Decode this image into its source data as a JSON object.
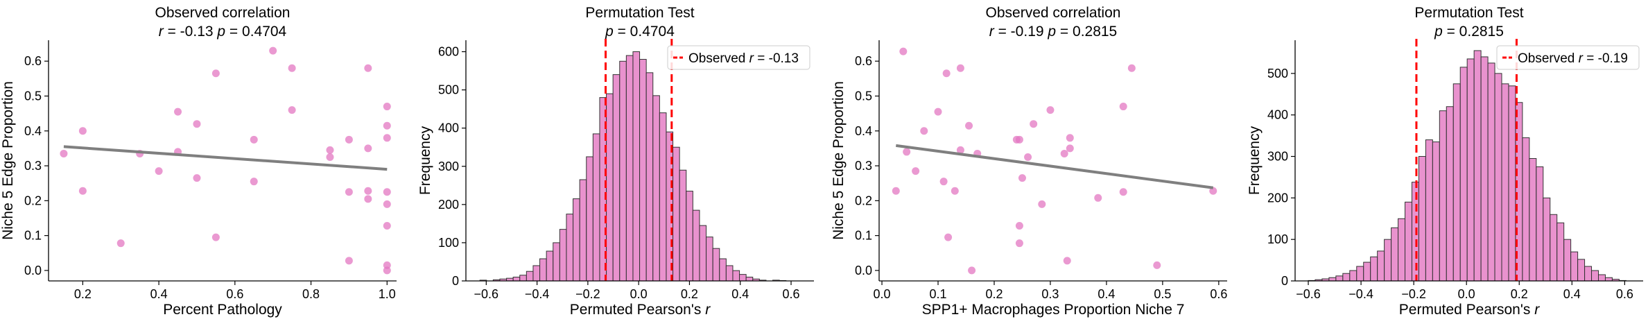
{
  "chart_data": [
    {
      "type": "scatter",
      "title": [
        "Observed correlation",
        "r = -0.13  p = 0.4704"
      ],
      "xlabel": "Percent Pathology",
      "ylabel": "Niche 5 Edge Proportion",
      "xlim": [
        0.11,
        1.025
      ],
      "ylim": [
        -0.03,
        0.66
      ],
      "xticks": [
        0.2,
        0.4,
        0.6,
        0.8,
        1.0
      ],
      "xtick_labels": [
        "0.2",
        "0.4",
        "0.6",
        "0.8",
        "1.0"
      ],
      "yticks": [
        0.0,
        0.1,
        0.2,
        0.3,
        0.4,
        0.5,
        0.6
      ],
      "ytick_labels": [
        "0.0",
        "0.1",
        "0.2",
        "0.3",
        "0.4",
        "0.5",
        "0.6"
      ],
      "point_color": "#e377c2",
      "line_color": "#7f7f7f",
      "fit_line": {
        "x": [
          0.15,
          1.0
        ],
        "y": [
          0.355,
          0.29
        ]
      },
      "points": [
        [
          0.15,
          0.335
        ],
        [
          0.2,
          0.4
        ],
        [
          0.2,
          0.228
        ],
        [
          0.3,
          0.078
        ],
        [
          0.35,
          0.335
        ],
        [
          0.4,
          0.285
        ],
        [
          0.45,
          0.455
        ],
        [
          0.45,
          0.34
        ],
        [
          0.5,
          0.42
        ],
        [
          0.5,
          0.265
        ],
        [
          0.55,
          0.565
        ],
        [
          0.55,
          0.095
        ],
        [
          0.65,
          0.375
        ],
        [
          0.65,
          0.255
        ],
        [
          0.7,
          0.63
        ],
        [
          0.75,
          0.58
        ],
        [
          0.75,
          0.46
        ],
        [
          0.85,
          0.345
        ],
        [
          0.85,
          0.325
        ],
        [
          0.9,
          0.375
        ],
        [
          0.9,
          0.225
        ],
        [
          0.9,
          0.028
        ],
        [
          0.95,
          0.58
        ],
        [
          0.95,
          0.35
        ],
        [
          0.95,
          0.228
        ],
        [
          0.95,
          0.205
        ],
        [
          1.0,
          0.47
        ],
        [
          1.0,
          0.415
        ],
        [
          1.0,
          0.38
        ],
        [
          1.0,
          0.225
        ],
        [
          1.0,
          0.19
        ],
        [
          1.0,
          0.128
        ],
        [
          1.0,
          0.015
        ],
        [
          1.0,
          0.0
        ]
      ]
    },
    {
      "type": "histogram",
      "title": [
        "Permutation Test",
        "p = 0.4704"
      ],
      "xlabel": "Permuted Pearson's r",
      "ylabel": "Frequency",
      "xlim": [
        -0.68,
        0.69
      ],
      "ylim": [
        0,
        630
      ],
      "xticks": [
        -0.6,
        -0.4,
        -0.2,
        0.0,
        0.2,
        0.4,
        0.6
      ],
      "xtick_labels": [
        "−0.6",
        "−0.4",
        "−0.2",
        "0.0",
        "0.2",
        "0.4",
        "0.6"
      ],
      "yticks": [
        0,
        100,
        200,
        300,
        400,
        500,
        600
      ],
      "ytick_labels": [
        "0",
        "100",
        "200",
        "300",
        "400",
        "500",
        "600"
      ],
      "bar_color": "#e377c2",
      "edge_color": "#333333",
      "bin_start": -0.625,
      "bin_width": 0.0262,
      "counts": [
        2,
        0,
        3,
        5,
        7,
        10,
        15,
        25,
        40,
        58,
        78,
        100,
        135,
        175,
        215,
        265,
        325,
        385,
        480,
        490,
        540,
        575,
        590,
        600,
        580,
        545,
        485,
        440,
        390,
        350,
        290,
        235,
        185,
        145,
        115,
        85,
        58,
        40,
        27,
        17,
        10,
        5,
        2,
        0,
        2,
        1
      ],
      "vlines": [
        -0.13,
        0.13
      ],
      "vline_color": "#ff0000",
      "legend": "Observed r = -0.13",
      "legend_loc": "upper right"
    },
    {
      "type": "scatter",
      "title": [
        "Observed correlation",
        "r = -0.19  p = 0.2815"
      ],
      "xlabel": "SPP1+ Macrophages Proportion Niche 7",
      "ylabel": "Niche 5 Edge Proportion",
      "xlim": [
        -0.005,
        0.615
      ],
      "ylim": [
        -0.03,
        0.66
      ],
      "xticks": [
        0.0,
        0.1,
        0.2,
        0.3,
        0.4,
        0.5,
        0.6
      ],
      "xtick_labels": [
        "0.0",
        "0.1",
        "0.2",
        "0.3",
        "0.4",
        "0.5",
        "0.6"
      ],
      "yticks": [
        0.0,
        0.1,
        0.2,
        0.3,
        0.4,
        0.5,
        0.6
      ],
      "ytick_labels": [
        "0.0",
        "0.1",
        "0.2",
        "0.3",
        "0.4",
        "0.5",
        "0.6"
      ],
      "point_color": "#e377c2",
      "line_color": "#7f7f7f",
      "fit_line": {
        "x": [
          0.025,
          0.59
        ],
        "y": [
          0.358,
          0.237
        ]
      },
      "points": [
        [
          0.025,
          0.228
        ],
        [
          0.038,
          0.628
        ],
        [
          0.044,
          0.34
        ],
        [
          0.06,
          0.285
        ],
        [
          0.075,
          0.4
        ],
        [
          0.1,
          0.455
        ],
        [
          0.115,
          0.565
        ],
        [
          0.11,
          0.255
        ],
        [
          0.118,
          0.095
        ],
        [
          0.13,
          0.228
        ],
        [
          0.14,
          0.58
        ],
        [
          0.14,
          0.345
        ],
        [
          0.155,
          0.415
        ],
        [
          0.16,
          0.0
        ],
        [
          0.17,
          0.335
        ],
        [
          0.24,
          0.375
        ],
        [
          0.245,
          0.375
        ],
        [
          0.245,
          0.128
        ],
        [
          0.245,
          0.078
        ],
        [
          0.25,
          0.265
        ],
        [
          0.26,
          0.325
        ],
        [
          0.27,
          0.42
        ],
        [
          0.285,
          0.19
        ],
        [
          0.3,
          0.46
        ],
        [
          0.325,
          0.335
        ],
        [
          0.33,
          0.028
        ],
        [
          0.335,
          0.38
        ],
        [
          0.335,
          0.35
        ],
        [
          0.385,
          0.208
        ],
        [
          0.43,
          0.47
        ],
        [
          0.43,
          0.225
        ],
        [
          0.445,
          0.58
        ],
        [
          0.49,
          0.015
        ],
        [
          0.59,
          0.228
        ]
      ]
    },
    {
      "type": "histogram",
      "title": [
        "Permutation Test",
        "p = 0.2815"
      ],
      "xlabel": "Permuted Pearson's r",
      "ylabel": "Frequency",
      "xlim": [
        -0.65,
        0.67
      ],
      "ylim": [
        0,
        580
      ],
      "xticks": [
        -0.6,
        -0.4,
        -0.2,
        0.0,
        0.2,
        0.4,
        0.6
      ],
      "xtick_labels": [
        "−0.6",
        "−0.4",
        "−0.2",
        "0.0",
        "0.2",
        "0.4",
        "0.6"
      ],
      "yticks": [
        0,
        100,
        200,
        300,
        400,
        500
      ],
      "ytick_labels": [
        "0",
        "100",
        "200",
        "300",
        "400",
        "500"
      ],
      "bar_color": "#e377c2",
      "edge_color": "#333333",
      "bin_start": -0.6,
      "bin_width": 0.0262,
      "counts": [
        1,
        3,
        5,
        8,
        12,
        18,
        25,
        35,
        45,
        58,
        72,
        100,
        128,
        150,
        190,
        238,
        300,
        340,
        335,
        410,
        420,
        475,
        515,
        535,
        555,
        540,
        525,
        500,
        475,
        470,
        430,
        345,
        295,
        275,
        200,
        160,
        140,
        100,
        70,
        52,
        35,
        25,
        15,
        8,
        4,
        1
      ],
      "vlines": [
        -0.19,
        0.19
      ],
      "vline_color": "#ff0000",
      "legend": "Observed r = -0.19",
      "legend_loc": "upper right"
    }
  ]
}
